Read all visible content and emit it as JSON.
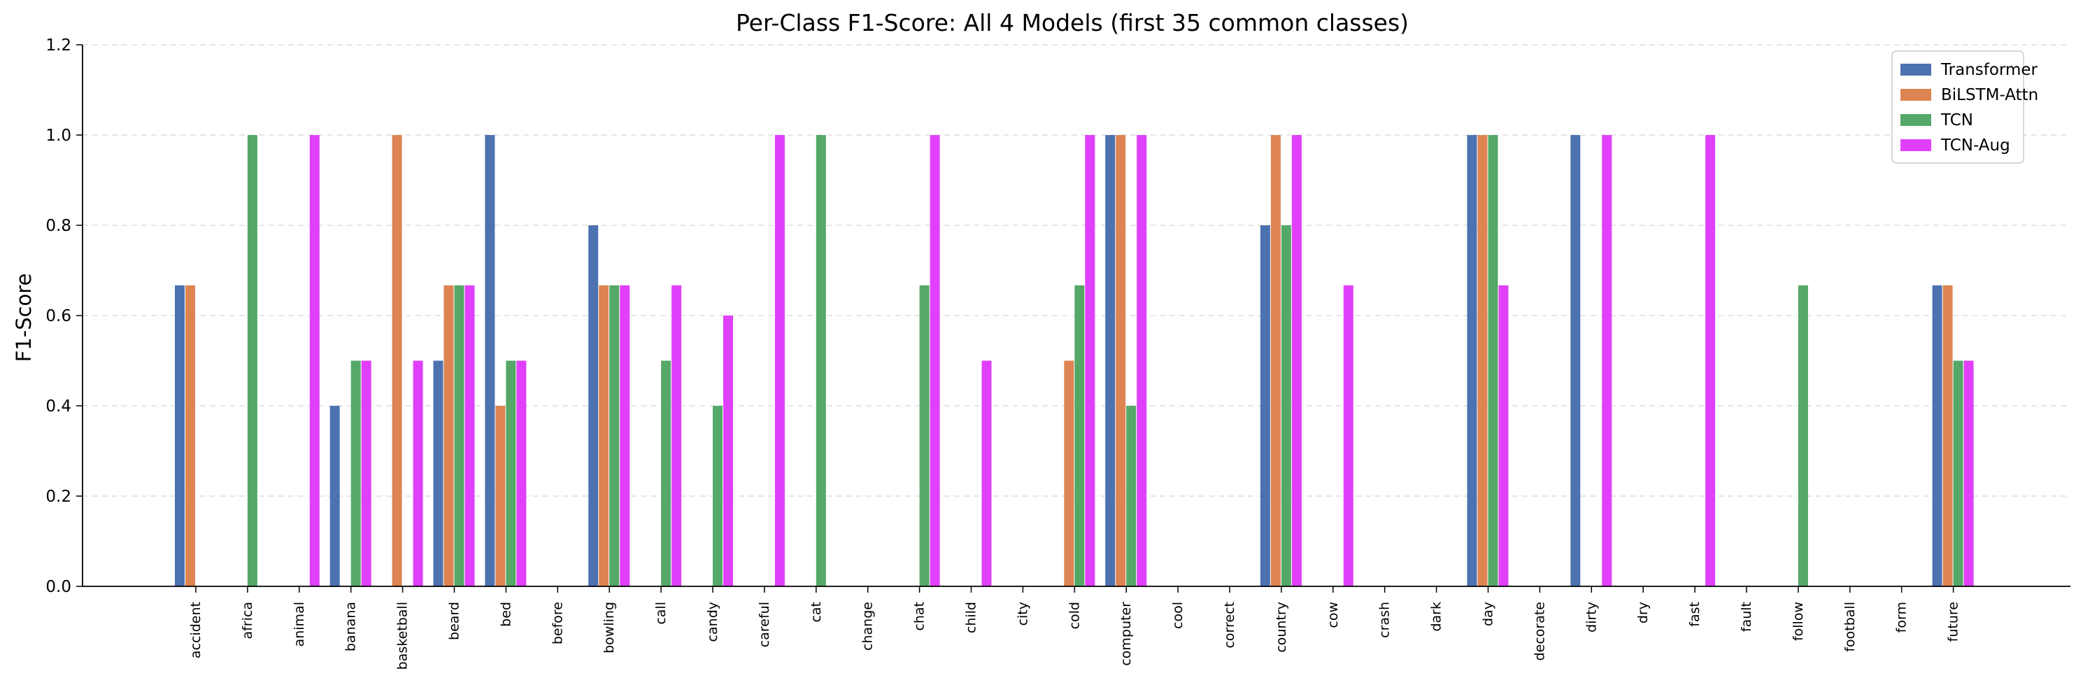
{
  "chart_data": {
    "type": "bar",
    "title": "Per-Class F1-Score: All 4 Models (first 35 common classes)",
    "xlabel": "",
    "ylabel": "F1-Score",
    "ylim": [
      0,
      1.2
    ],
    "yticks": [
      "0.0",
      "0.2",
      "0.4",
      "0.6",
      "0.8",
      "1.0",
      "1.2"
    ],
    "grid": "y-dashed",
    "legend_position": "top-right",
    "categories": [
      "accident",
      "africa",
      "animal",
      "banana",
      "basketball",
      "beard",
      "bed",
      "before",
      "bowling",
      "call",
      "candy",
      "careful",
      "cat",
      "change",
      "chat",
      "child",
      "city",
      "cold",
      "computer",
      "cool",
      "correct",
      "country",
      "cow",
      "crash",
      "dark",
      "day",
      "decorate",
      "dirty",
      "dry",
      "fast",
      "fault",
      "follow",
      "football",
      "form",
      "future"
    ],
    "series": [
      {
        "name": "Transformer",
        "color": "#4c72b0",
        "values": [
          0.667,
          0,
          0,
          0.4,
          0,
          0.5,
          1.0,
          0,
          0.8,
          0,
          0,
          0,
          0,
          0,
          0,
          0,
          0,
          0,
          1.0,
          0,
          0,
          0.8,
          0,
          0,
          0,
          1.0,
          0,
          1.0,
          0,
          0,
          0,
          0,
          0,
          0,
          0.667
        ]
      },
      {
        "name": "BiLSTM-Attn",
        "color": "#dd8452",
        "values": [
          0.667,
          0,
          0,
          0,
          1.0,
          0.667,
          0.4,
          0,
          0.667,
          0,
          0,
          0,
          0,
          0,
          0,
          0,
          0,
          0.5,
          1.0,
          0,
          0,
          1.0,
          0,
          0,
          0,
          1.0,
          0,
          0,
          0,
          0,
          0,
          0,
          0,
          0,
          0.667
        ]
      },
      {
        "name": "TCN",
        "color": "#55a868",
        "values": [
          0,
          1.0,
          0,
          0.5,
          0,
          0.667,
          0.5,
          0,
          0.667,
          0.5,
          0.4,
          0,
          1.0,
          0,
          0.667,
          0,
          0,
          0.667,
          0.4,
          0,
          0,
          0.8,
          0,
          0,
          0,
          1.0,
          0,
          0,
          0,
          0,
          0,
          0.667,
          0,
          0,
          0.5
        ]
      },
      {
        "name": "TCN-Aug",
        "color": "#e040fb",
        "values": [
          0,
          0,
          1.0,
          0.5,
          0.5,
          0.667,
          0.5,
          0,
          0.667,
          0.667,
          0.6,
          1.0,
          0,
          0,
          1.0,
          0.5,
          0,
          1.0,
          1.0,
          0,
          0,
          1.0,
          0.667,
          0,
          0,
          0.667,
          0,
          1.0,
          0,
          1.0,
          0,
          0,
          0,
          0,
          0.5
        ]
      }
    ]
  }
}
